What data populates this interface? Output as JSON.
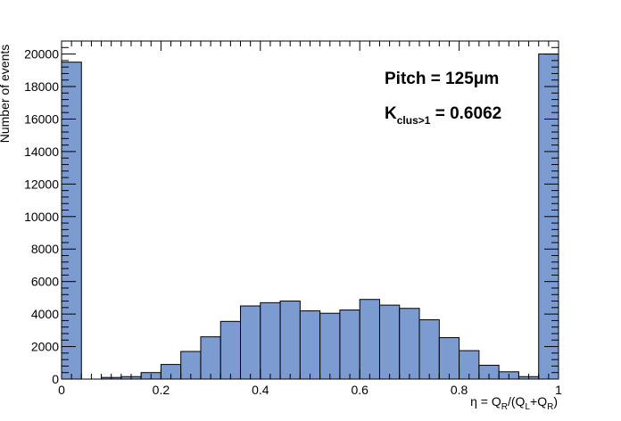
{
  "chart_data": {
    "type": "bar",
    "title": "",
    "xlabel": "η = Q_R/(Q_L+Q_R)",
    "ylabel": "Number of events",
    "xlim": [
      0,
      1
    ],
    "ylim": [
      0,
      20800
    ],
    "x_ticks": [
      0,
      0.2,
      0.4,
      0.6,
      0.8,
      1
    ],
    "x_tick_labels": [
      "0",
      "0.2",
      "0.4",
      "0.6",
      "0.8",
      "1"
    ],
    "y_ticks": [
      0,
      2000,
      4000,
      6000,
      8000,
      10000,
      12000,
      14000,
      16000,
      18000,
      20000
    ],
    "y_tick_labels": [
      "0",
      "2000",
      "4000",
      "6000",
      "8000",
      "10000",
      "12000",
      "14000",
      "16000",
      "18000",
      "20000"
    ],
    "bin_width": 0.04,
    "bin_edges_start": 0,
    "values": [
      19500,
      0,
      100,
      150,
      400,
      900,
      1700,
      2600,
      3550,
      4500,
      4700,
      4800,
      4200,
      4050,
      4250,
      4900,
      4550,
      4350,
      3650,
      2550,
      1750,
      850,
      450,
      150,
      20000
    ],
    "fill_color": "#7b9bd1",
    "edge_color": "#000000",
    "grid": false,
    "annotations": {
      "pitch": "Pitch = 125μm",
      "k_main": "K",
      "k_sub": "clus>1",
      "k_value": " = 0.6062"
    }
  }
}
